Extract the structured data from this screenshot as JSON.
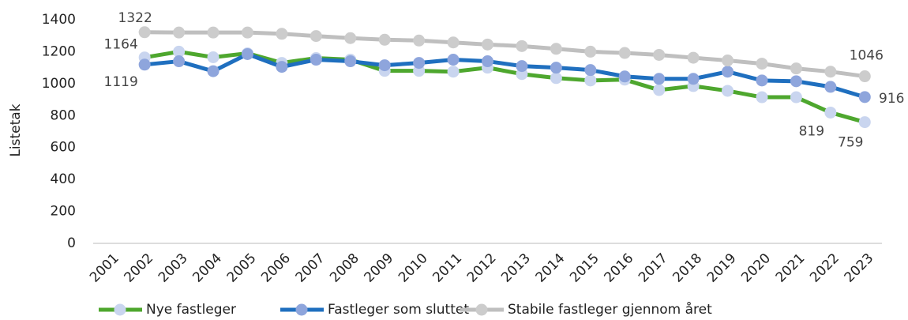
{
  "chart_data": {
    "type": "line",
    "y_label": "Listetak",
    "categories": [
      "2001",
      "2002",
      "2003",
      "2004",
      "2005",
      "2006",
      "2007",
      "2008",
      "2009",
      "2010",
      "2011",
      "2012",
      "2013",
      "2014",
      "2015",
      "2016",
      "2017",
      "2018",
      "2019",
      "2020",
      "2021",
      "2022",
      "2023"
    ],
    "series": [
      {
        "name": "Nye fastleger",
        "color": "#4ea72e",
        "marker_color": "#c9d5ef",
        "values": [
          null,
          1164,
          1200,
          1165,
          1190,
          1130,
          1160,
          1150,
          1080,
          1080,
          1075,
          1100,
          1060,
          1035,
          1020,
          1025,
          960,
          985,
          955,
          915,
          915,
          819,
          759
        ],
        "value_labels": [
          null,
          "1164",
          null,
          null,
          null,
          null,
          null,
          null,
          null,
          null,
          null,
          null,
          null,
          null,
          null,
          null,
          null,
          null,
          null,
          null,
          null,
          "819",
          "759"
        ]
      },
      {
        "name": "Fastleger som sluttet",
        "color": "#1f6fbf",
        "marker_color": "#8ea5dc",
        "values": [
          null,
          1119,
          1140,
          1078,
          1185,
          1105,
          1150,
          1140,
          1115,
          1130,
          1150,
          1140,
          1110,
          1100,
          1085,
          1045,
          1030,
          1030,
          1075,
          1020,
          1015,
          980,
          916
        ],
        "value_labels": [
          null,
          "1119",
          null,
          null,
          null,
          null,
          null,
          null,
          null,
          null,
          null,
          null,
          null,
          null,
          null,
          null,
          null,
          null,
          null,
          null,
          null,
          null,
          "916"
        ]
      },
      {
        "name": "Stabile fastleger gjennom året",
        "color": "#bfbfbf",
        "marker_color": "#cccccc",
        "values": [
          null,
          1322,
          1320,
          1320,
          1320,
          1312,
          1298,
          1285,
          1275,
          1270,
          1258,
          1245,
          1235,
          1218,
          1200,
          1192,
          1180,
          1162,
          1145,
          1125,
          1095,
          1075,
          1046
        ],
        "value_labels": [
          null,
          "1322",
          null,
          null,
          null,
          null,
          null,
          null,
          null,
          null,
          null,
          null,
          null,
          null,
          null,
          null,
          null,
          null,
          null,
          null,
          null,
          null,
          "1046"
        ]
      }
    ],
    "ylim": [
      0,
      1400
    ],
    "yticks": [
      0,
      200,
      400,
      600,
      800,
      1000,
      1200,
      1400
    ],
    "grid": false,
    "legend": "bottom"
  }
}
